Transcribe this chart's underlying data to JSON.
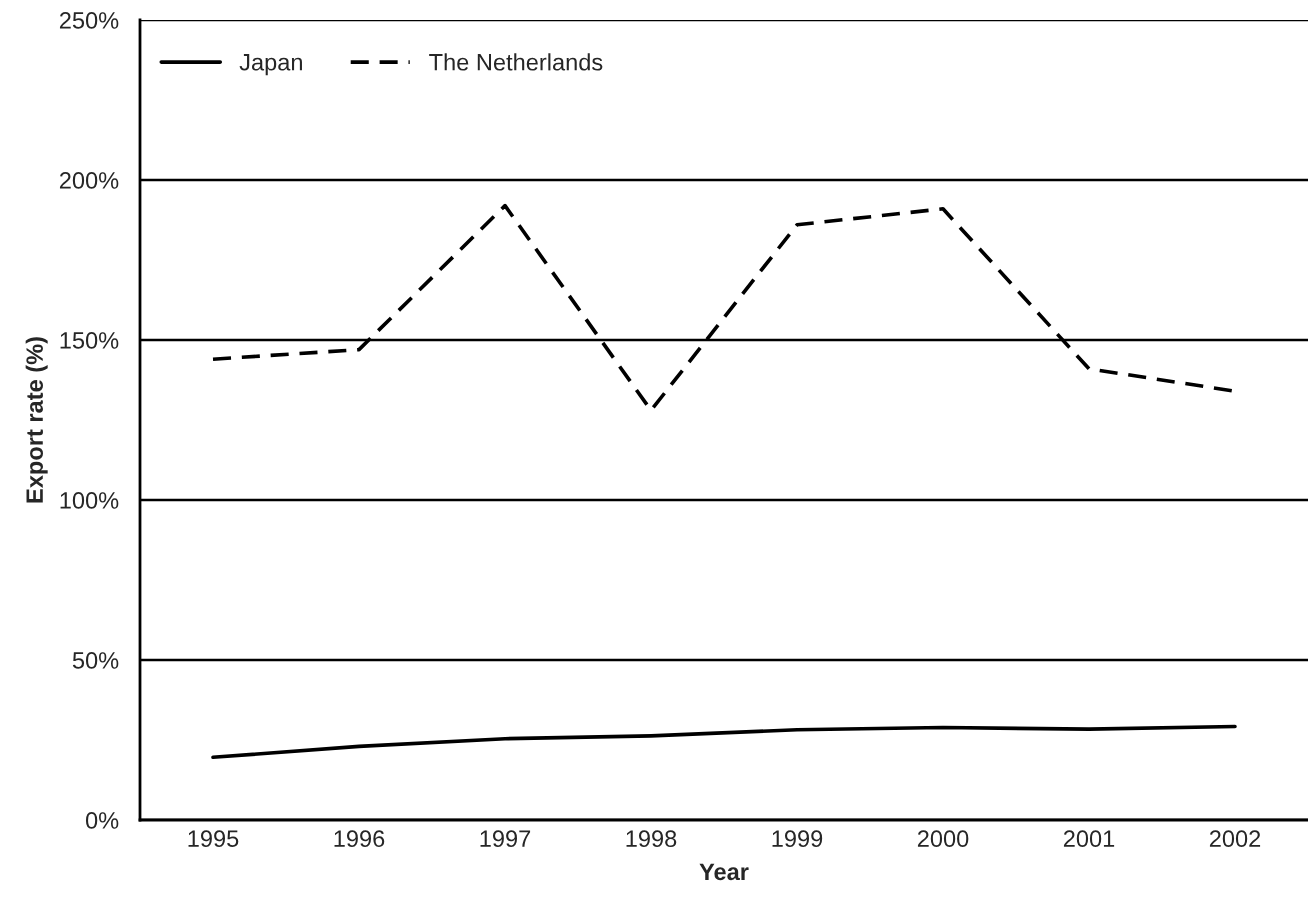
{
  "chart_data": {
    "type": "line",
    "xlabel": "Year",
    "ylabel": "Export rate (%)",
    "categories": [
      "1995",
      "1996",
      "1997",
      "1998",
      "1999",
      "2000",
      "2001",
      "2002"
    ],
    "series": [
      {
        "name": "Japan",
        "color": "#000000",
        "line_style": "solid",
        "values": [
          19.6,
          23,
          25.4,
          26.3,
          28.2,
          28.9,
          28.4,
          29.2
        ]
      },
      {
        "name": "The Netherlands",
        "color": "#000000",
        "line_style": "dashed",
        "values": [
          144,
          147,
          192,
          128,
          186,
          191,
          141,
          134
        ]
      }
    ],
    "ylim": [
      0,
      250
    ],
    "yticks": [
      {
        "value": 0,
        "label": "0%"
      },
      {
        "value": 50,
        "label": "50%"
      },
      {
        "value": 100,
        "label": "100%"
      },
      {
        "value": 150,
        "label": "150%"
      },
      {
        "value": 200,
        "label": "200%"
      },
      {
        "value": 250,
        "label": "250%"
      }
    ],
    "grid": "y",
    "legend": "top left",
    "marker": "none"
  }
}
